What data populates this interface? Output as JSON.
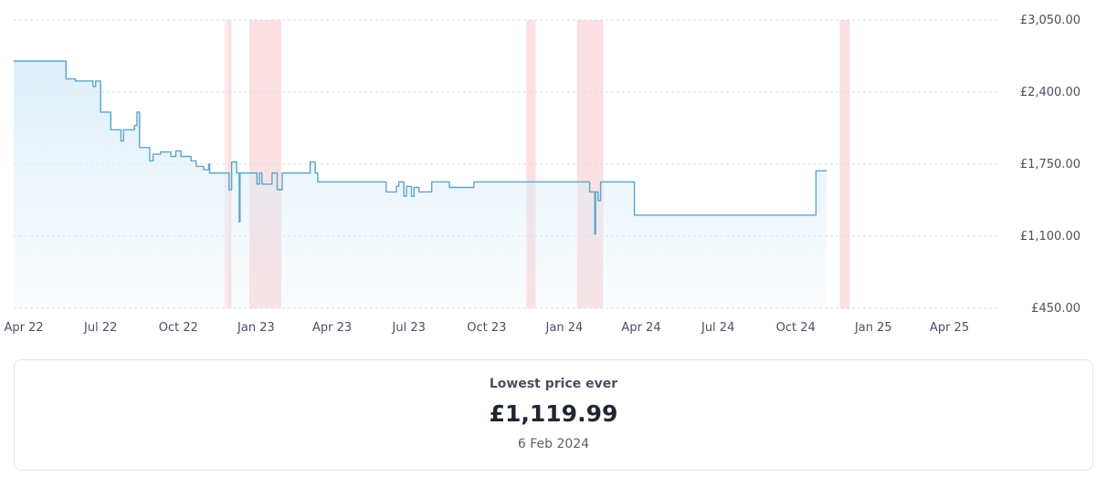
{
  "chart_data": {
    "type": "line",
    "x_domain": [
      "2022-03-20",
      "2025-05-31"
    ],
    "ylim": [
      450,
      3050
    ],
    "y_ticks": [
      "£3,050.00",
      "£2,400.00",
      "£1,750.00",
      "£1,100.00",
      "£450.00"
    ],
    "y_tick_values": [
      3050,
      2400,
      1750,
      1100,
      450
    ],
    "x_ticks": [
      {
        "label": "Apr 22",
        "date": "2022-04-01"
      },
      {
        "label": "Jul 22",
        "date": "2022-07-01"
      },
      {
        "label": "Oct 22",
        "date": "2022-10-01"
      },
      {
        "label": "Jan 23",
        "date": "2023-01-01"
      },
      {
        "label": "Apr 23",
        "date": "2023-04-01"
      },
      {
        "label": "Jul 23",
        "date": "2023-07-01"
      },
      {
        "label": "Oct 23",
        "date": "2023-10-01"
      },
      {
        "label": "Jan 24",
        "date": "2024-01-01"
      },
      {
        "label": "Apr 24",
        "date": "2024-04-01"
      },
      {
        "label": "Jul 24",
        "date": "2024-07-01"
      },
      {
        "label": "Oct 24",
        "date": "2024-10-01"
      },
      {
        "label": "Jan 25",
        "date": "2025-01-01"
      },
      {
        "label": "Apr 25",
        "date": "2025-04-01"
      }
    ],
    "highlight_ranges": [
      [
        "2022-11-25",
        "2022-11-26"
      ],
      [
        "2022-11-28",
        "2022-12-03"
      ],
      [
        "2022-12-24",
        "2023-01-31"
      ],
      [
        "2023-11-17",
        "2023-11-28"
      ],
      [
        "2024-01-16",
        "2024-02-16"
      ],
      [
        "2024-11-22",
        "2024-12-04"
      ]
    ],
    "series": [
      {
        "points": [
          [
            "2022-03-20",
            2680
          ],
          [
            "2022-05-21",
            2680
          ],
          [
            "2022-05-21",
            2520
          ],
          [
            "2022-06-01",
            2520
          ],
          [
            "2022-06-01",
            2500
          ],
          [
            "2022-06-22",
            2500
          ],
          [
            "2022-06-22",
            2450
          ],
          [
            "2022-06-25",
            2450
          ],
          [
            "2022-06-25",
            2500
          ],
          [
            "2022-07-01",
            2500
          ],
          [
            "2022-07-01",
            2220
          ],
          [
            "2022-07-13",
            2220
          ],
          [
            "2022-07-13",
            2060
          ],
          [
            "2022-07-25",
            2060
          ],
          [
            "2022-07-25",
            1960
          ],
          [
            "2022-07-28",
            1960
          ],
          [
            "2022-07-28",
            2060
          ],
          [
            "2022-08-10",
            2060
          ],
          [
            "2022-08-10",
            2100
          ],
          [
            "2022-08-13",
            2100
          ],
          [
            "2022-08-13",
            2220
          ],
          [
            "2022-08-16",
            2220
          ],
          [
            "2022-08-16",
            1900
          ],
          [
            "2022-08-28",
            1900
          ],
          [
            "2022-08-28",
            1780
          ],
          [
            "2022-09-01",
            1780
          ],
          [
            "2022-09-01",
            1840
          ],
          [
            "2022-09-10",
            1840
          ],
          [
            "2022-09-10",
            1860
          ],
          [
            "2022-09-22",
            1860
          ],
          [
            "2022-09-22",
            1820
          ],
          [
            "2022-09-28",
            1820
          ],
          [
            "2022-09-28",
            1870
          ],
          [
            "2022-10-04",
            1870
          ],
          [
            "2022-10-04",
            1820
          ],
          [
            "2022-10-16",
            1820
          ],
          [
            "2022-10-16",
            1780
          ],
          [
            "2022-10-22",
            1780
          ],
          [
            "2022-10-22",
            1730
          ],
          [
            "2022-10-31",
            1730
          ],
          [
            "2022-10-31",
            1700
          ],
          [
            "2022-11-06",
            1700
          ],
          [
            "2022-11-06",
            1750
          ],
          [
            "2022-11-07",
            1750
          ],
          [
            "2022-11-07",
            1670
          ],
          [
            "2022-11-30",
            1670
          ],
          [
            "2022-11-30",
            1520
          ],
          [
            "2022-12-03",
            1520
          ],
          [
            "2022-12-03",
            1770
          ],
          [
            "2022-12-09",
            1770
          ],
          [
            "2022-12-09",
            1670
          ],
          [
            "2022-12-12",
            1670
          ],
          [
            "2022-12-12",
            1230
          ],
          [
            "2022-12-13",
            1230
          ],
          [
            "2022-12-13",
            1670
          ],
          [
            "2023-01-02",
            1670
          ],
          [
            "2023-01-02",
            1570
          ],
          [
            "2023-01-05",
            1570
          ],
          [
            "2023-01-05",
            1670
          ],
          [
            "2023-01-08",
            1670
          ],
          [
            "2023-01-08",
            1570
          ],
          [
            "2023-01-20",
            1570
          ],
          [
            "2023-01-20",
            1670
          ],
          [
            "2023-01-26",
            1670
          ],
          [
            "2023-01-26",
            1520
          ],
          [
            "2023-02-01",
            1520
          ],
          [
            "2023-02-01",
            1670
          ],
          [
            "2023-03-06",
            1670
          ],
          [
            "2023-03-06",
            1770
          ],
          [
            "2023-03-12",
            1770
          ],
          [
            "2023-03-12",
            1670
          ],
          [
            "2023-03-15",
            1670
          ],
          [
            "2023-03-15",
            1590
          ],
          [
            "2023-06-04",
            1590
          ],
          [
            "2023-06-04",
            1500
          ],
          [
            "2023-06-16",
            1500
          ],
          [
            "2023-06-16",
            1550
          ],
          [
            "2023-06-19",
            1550
          ],
          [
            "2023-06-19",
            1590
          ],
          [
            "2023-06-25",
            1590
          ],
          [
            "2023-06-25",
            1460
          ],
          [
            "2023-06-28",
            1460
          ],
          [
            "2023-06-28",
            1550
          ],
          [
            "2023-07-04",
            1550
          ],
          [
            "2023-07-04",
            1460
          ],
          [
            "2023-07-07",
            1460
          ],
          [
            "2023-07-07",
            1540
          ],
          [
            "2023-07-13",
            1540
          ],
          [
            "2023-07-13",
            1500
          ],
          [
            "2023-07-28",
            1500
          ],
          [
            "2023-07-28",
            1590
          ],
          [
            "2023-08-18",
            1590
          ],
          [
            "2023-08-18",
            1540
          ],
          [
            "2023-09-16",
            1540
          ],
          [
            "2023-09-16",
            1590
          ],
          [
            "2024-01-31",
            1590
          ],
          [
            "2024-01-31",
            1500
          ],
          [
            "2024-02-06",
            1500
          ],
          [
            "2024-02-06",
            1119.99
          ],
          [
            "2024-02-07",
            1119.99
          ],
          [
            "2024-02-07",
            1500
          ],
          [
            "2024-02-10",
            1500
          ],
          [
            "2024-02-10",
            1420
          ],
          [
            "2024-02-13",
            1420
          ],
          [
            "2024-02-13",
            1590
          ],
          [
            "2024-03-24",
            1590
          ],
          [
            "2024-03-24",
            1290
          ],
          [
            "2024-10-25",
            1290
          ],
          [
            "2024-10-25",
            1690
          ],
          [
            "2024-11-07",
            1690
          ]
        ]
      }
    ]
  },
  "summary": {
    "label": "Lowest price ever",
    "value": "£1,119.99",
    "date": "6 Feb 2024"
  },
  "colors": {
    "line": "#5aa6c8",
    "area_top": "#dcedf8",
    "highlight": "#fbe1e3",
    "grid": "#d9dde3"
  }
}
